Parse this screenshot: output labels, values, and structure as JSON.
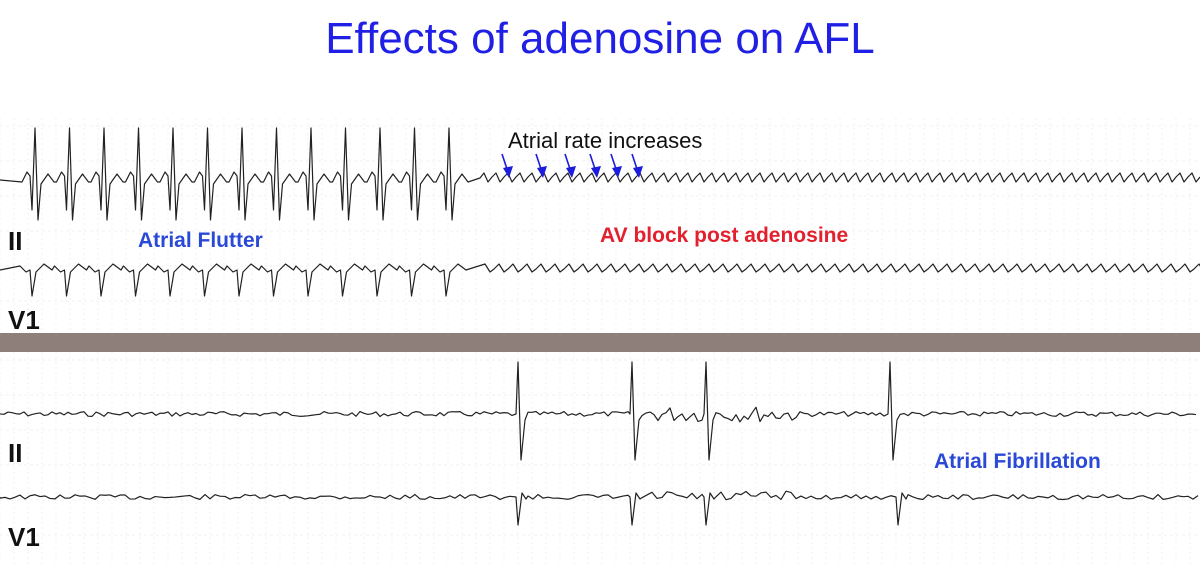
{
  "title": "Effects of adenosine on AFL",
  "top_strip": {
    "lead_ii_label": "II",
    "lead_v1_label": "V1",
    "rhythm_label": "Atrial Flutter",
    "block_label": "AV block post adenosine",
    "rate_label": "Atrial rate increases"
  },
  "bottom_strip": {
    "lead_ii_label": "II",
    "lead_v1_label": "V1",
    "rhythm_label": "Atrial Fibrillation"
  },
  "colors": {
    "title": "#1f1fe6",
    "label_blue": "#2a49d6",
    "label_red": "#e3202e",
    "arrows": "#1c1cdc",
    "divider": "#8f7f7b",
    "trace": "#222222"
  }
}
